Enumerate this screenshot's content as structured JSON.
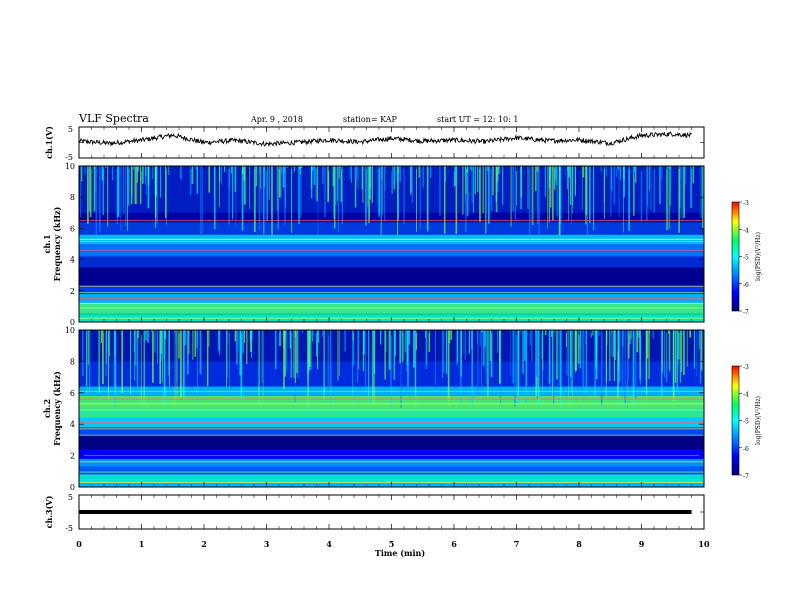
{
  "header": {
    "title": "VLF Spectra",
    "date": "Apr. 9 , 2018",
    "station": "station= KAP",
    "start_ut": "start  UT =   12: 10: 1"
  },
  "chart_data": [
    {
      "type": "line",
      "panel": "ch1-waveform",
      "ylabel": "ch.1(V)",
      "ylim": [
        -5,
        5
      ],
      "yticks": [
        "5",
        "-5"
      ],
      "x_minutes": [
        0,
        0.5,
        1,
        1.5,
        2,
        2.5,
        3,
        3.5,
        4,
        4.5,
        5,
        5.5,
        6,
        6.5,
        7,
        7.5,
        8,
        8.5,
        9,
        9.5,
        9.8
      ],
      "values": [
        0.5,
        -0.3,
        0.8,
        2.5,
        0.0,
        0.7,
        -0.5,
        0.0,
        0.9,
        0.2,
        1.4,
        0.5,
        0.8,
        0.3,
        1.6,
        0.6,
        0.9,
        -0.2,
        2.4,
        2.9,
        2.4
      ]
    },
    {
      "type": "heatmap",
      "panel": "ch1-spectrogram",
      "ylabel": "ch.1 Frequency (kHz)",
      "ylim": [
        0,
        10
      ],
      "yticks": [
        "0",
        "2",
        "4",
        "6",
        "8",
        "10"
      ],
      "colorbar": {
        "label": "log(PSD)(V²/Hz)",
        "ticks": [
          "-3",
          "-4",
          "-5",
          "-6",
          "-7"
        ],
        "range": [
          -7,
          -3
        ]
      },
      "bands_khz": [
        0.25,
        0.55,
        0.9,
        1.2,
        1.5,
        1.9,
        2.3,
        4.6,
        5.15,
        5.3,
        6.5
      ]
    },
    {
      "type": "heatmap",
      "panel": "ch2-spectrogram",
      "ylabel": "ch.2 Frequency (kHz)",
      "ylim": [
        0,
        10
      ],
      "yticks": [
        "0",
        "2",
        "4",
        "6",
        "8",
        "10"
      ],
      "colorbar": {
        "label": "log(PSD)(V²/Hz)",
        "ticks": [
          "-3",
          "-4",
          "-5",
          "-6",
          "-7"
        ],
        "range": [
          -7,
          -3
        ]
      },
      "bands_khz": [
        0.3,
        0.6,
        0.95,
        1.6,
        2.0,
        3.3,
        3.7,
        4.1,
        4.9,
        5.3,
        5.6,
        6.1
      ]
    },
    {
      "type": "line",
      "panel": "ch3-waveform",
      "ylabel": "ch.3(V)",
      "ylim": [
        -5,
        5
      ],
      "yticks": [
        "5",
        "-5"
      ],
      "x_minutes": [
        0,
        9.8
      ],
      "values": [
        0,
        0
      ]
    }
  ],
  "x_axis": {
    "label": "Time (min)",
    "range": [
      0,
      10
    ],
    "ticks": [
      "0",
      "1",
      "2",
      "3",
      "4",
      "5",
      "6",
      "7",
      "8",
      "9",
      "10"
    ]
  },
  "colors": {
    "heatmap_stops": [
      "#00007a",
      "#0000ff",
      "#0080ff",
      "#00ffff",
      "#00ff60",
      "#ffff00",
      "#ff0000"
    ],
    "trace": "#000000"
  }
}
